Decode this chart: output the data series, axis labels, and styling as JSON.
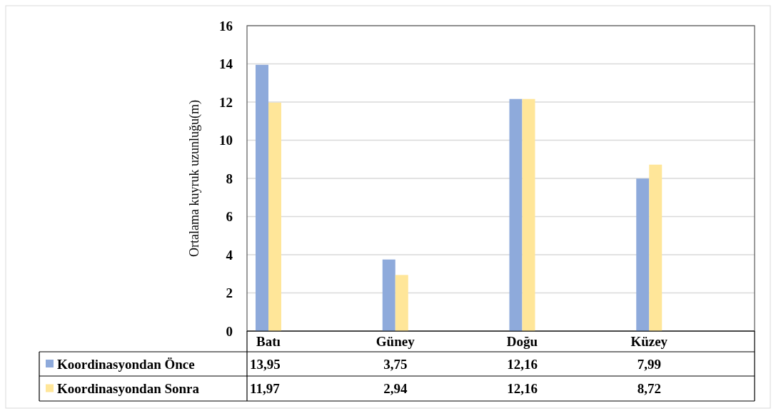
{
  "chart_data": {
    "type": "bar",
    "ylabel": "Ortalama kuyruk uzunluğu(m)",
    "categories": [
      "Batı",
      "Güney",
      "Doğu",
      "Küzey"
    ],
    "series": [
      {
        "name": "Koordinasyondan Önce",
        "color": "#8eaadb",
        "values": [
          13.95,
          3.75,
          12.16,
          7.99
        ],
        "value_labels": [
          "13,95",
          "3,75",
          "12,16",
          "7,99"
        ]
      },
      {
        "name": "Koordinasyondan Sonra",
        "color": "#ffe699",
        "values": [
          11.97,
          2.94,
          12.16,
          8.72
        ],
        "value_labels": [
          "11,97",
          "2,94",
          "12,16",
          "8,72"
        ]
      }
    ],
    "ylim": [
      0,
      16
    ],
    "yticks": [
      0,
      2,
      4,
      6,
      8,
      10,
      12,
      14,
      16
    ],
    "grid": "y",
    "legend": "bottom"
  }
}
